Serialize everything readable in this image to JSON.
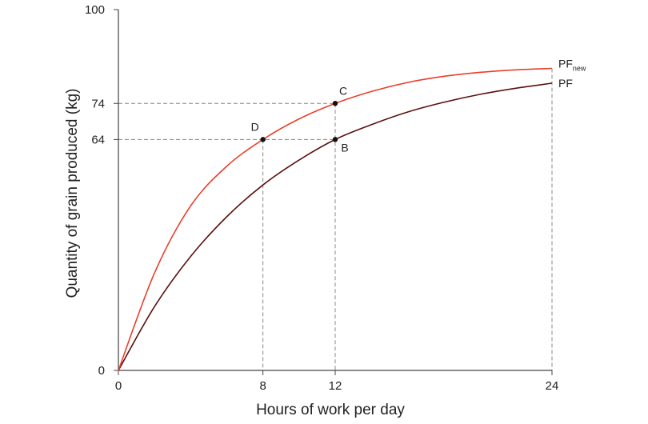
{
  "chart_data": {
    "type": "line",
    "xlabel": "Hours of work per day",
    "ylabel": "Quantity of grain produced (kg)",
    "xlim": [
      0,
      24
    ],
    "ylim": [
      0,
      100
    ],
    "x_ticks": [
      0,
      8,
      12,
      24
    ],
    "y_ticks": [
      0,
      64,
      74,
      100
    ],
    "grid": false,
    "series": [
      {
        "name": "PF",
        "color": "#5a1010",
        "x": [
          0,
          2,
          4,
          6,
          8,
          10,
          12,
          14,
          16,
          18,
          20,
          22,
          24
        ],
        "y": [
          0,
          17.7,
          31.6,
          42.6,
          51.4,
          58.3,
          64,
          68.1,
          71.6,
          74.3,
          76.5,
          78.2,
          79.6
        ]
      },
      {
        "name_main": "PF",
        "name_sub": "new",
        "color": "#e8402a",
        "x": [
          0,
          2,
          4,
          6,
          8,
          10,
          12,
          14,
          16,
          18,
          20,
          22,
          24
        ],
        "y": [
          0,
          27,
          45.6,
          56.6,
          64,
          69.7,
          74,
          77.3,
          79.8,
          81.5,
          82.6,
          83.3,
          83.7
        ]
      }
    ],
    "points": [
      {
        "label": "B",
        "x": 12,
        "y": 64
      },
      {
        "label": "C",
        "x": 12,
        "y": 74
      },
      {
        "label": "D",
        "x": 8,
        "y": 64
      }
    ],
    "guide_color": "#888888",
    "axis_color": "#444444"
  }
}
